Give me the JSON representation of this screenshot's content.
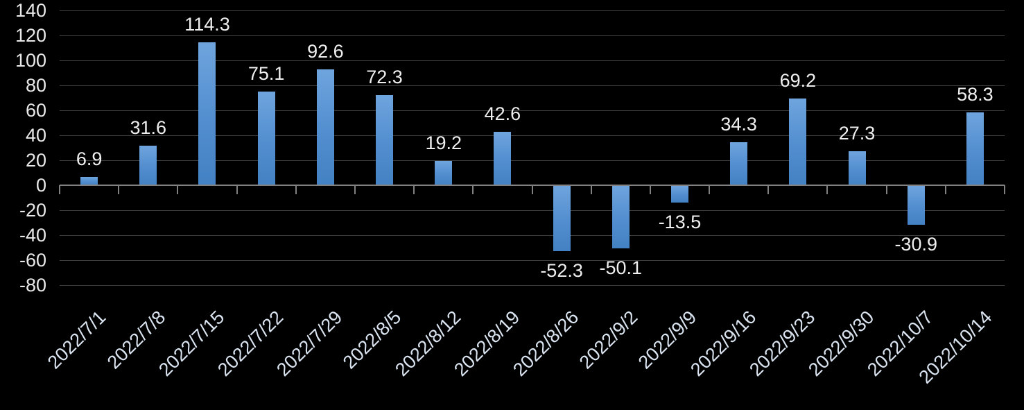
{
  "chart_data": {
    "type": "bar",
    "title": "",
    "xlabel": "",
    "ylabel": "",
    "categories": [
      "2022/7/1",
      "2022/7/8",
      "2022/7/15",
      "2022/7/22",
      "2022/7/29",
      "2022/8/5",
      "2022/8/12",
      "2022/8/19",
      "2022/8/26",
      "2022/9/2",
      "2022/9/9",
      "2022/9/16",
      "2022/9/23",
      "2022/9/30",
      "2022/10/7",
      "2022/10/14"
    ],
    "values": [
      6.9,
      31.6,
      114.3,
      75.1,
      92.6,
      72.3,
      19.2,
      42.6,
      -52.3,
      -50.1,
      -13.5,
      34.3,
      69.2,
      27.3,
      -30.9,
      58.3
    ],
    "value_labels": [
      "6.9",
      "31.6",
      "114.3",
      "75.1",
      "92.6",
      "72.3",
      "19.2",
      "42.6",
      "-52.3",
      "-50.1",
      "-13.5",
      "34.3",
      "69.2",
      "27.3",
      "-30.9",
      "58.3"
    ],
    "yticks": [
      140,
      120,
      100,
      80,
      60,
      40,
      20,
      0,
      -20,
      -40,
      -60,
      -80
    ],
    "ylim": [
      -80,
      140
    ],
    "grid": true,
    "legend_position": "none",
    "value_label_position": "outside-end",
    "colors": {
      "background": "#000000",
      "bar_gradient_top": "#6fa5de",
      "bar_gradient_bottom": "#4281c3",
      "gridline": "#3d3d3d",
      "axis_line": "#818181",
      "value_label_text": "#efefef",
      "ytick_label_text": "#e9e9e9",
      "xtick_label_text": "#dbe5f1"
    }
  }
}
